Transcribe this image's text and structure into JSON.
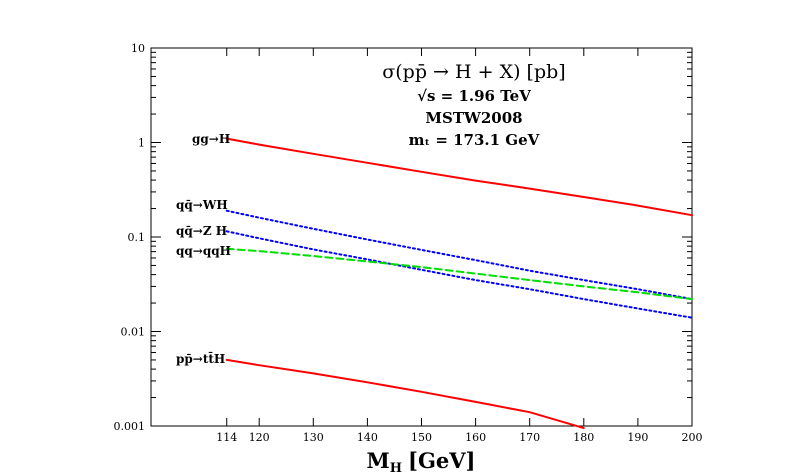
{
  "chart_data": {
    "type": "line",
    "title": "σ(pp̄ → H + X) [pb]",
    "annotations": [
      "√s = 1.96 TeV",
      "MSTW2008",
      "mₜ = 173.1 GeV"
    ],
    "xlabel": "M",
    "xlabel_sub": "H",
    "xlabel_unit": "[GeV]",
    "ylabel": "",
    "xlim": [
      100,
      200
    ],
    "ylim": [
      0.001,
      10
    ],
    "yscale": "log",
    "xticks": [
      114,
      120,
      130,
      140,
      150,
      160,
      170,
      180,
      190,
      200
    ],
    "yticks": [
      0.001,
      0.01,
      0.1,
      1,
      10
    ],
    "ytick_labels": [
      "0.001",
      "0.01",
      "0.1",
      "1",
      "10"
    ],
    "grid": false,
    "series": [
      {
        "name": "gg→H",
        "color": "#ff0000",
        "style": "solid",
        "x": [
          114,
          120,
          130,
          140,
          150,
          160,
          170,
          180,
          190,
          200
        ],
        "values": [
          1.1,
          0.95,
          0.76,
          0.61,
          0.49,
          0.395,
          0.325,
          0.265,
          0.215,
          0.17
        ]
      },
      {
        "name": "qq̄→WH",
        "color": "#0000ff",
        "style": "dotted",
        "x": [
          114,
          120,
          130,
          140,
          150,
          160,
          170,
          180,
          190,
          200
        ],
        "values": [
          0.19,
          0.16,
          0.122,
          0.094,
          0.073,
          0.057,
          0.044,
          0.035,
          0.028,
          0.022
        ]
      },
      {
        "name": "qq̄→Z H",
        "color": "#0000ff",
        "style": "dotted",
        "x": [
          114,
          120,
          130,
          140,
          150,
          160,
          170,
          180,
          190,
          200
        ],
        "values": [
          0.115,
          0.097,
          0.074,
          0.058,
          0.045,
          0.035,
          0.028,
          0.022,
          0.0175,
          0.014
        ]
      },
      {
        "name": "qq→qqH",
        "color": "#00dd00",
        "style": "dashed",
        "x": [
          114,
          120,
          130,
          140,
          150,
          160,
          170,
          180,
          190,
          200
        ],
        "values": [
          0.075,
          0.071,
          0.063,
          0.055,
          0.048,
          0.041,
          0.035,
          0.03,
          0.026,
          0.022
        ]
      },
      {
        "name": "pp̄→tt̄H",
        "color": "#ff0000",
        "style": "solid",
        "x": [
          114,
          120,
          130,
          140,
          150,
          160,
          170,
          180
        ],
        "values": [
          0.005,
          0.0044,
          0.0036,
          0.0029,
          0.0023,
          0.0018,
          0.0014,
          0.00095
        ]
      }
    ]
  }
}
